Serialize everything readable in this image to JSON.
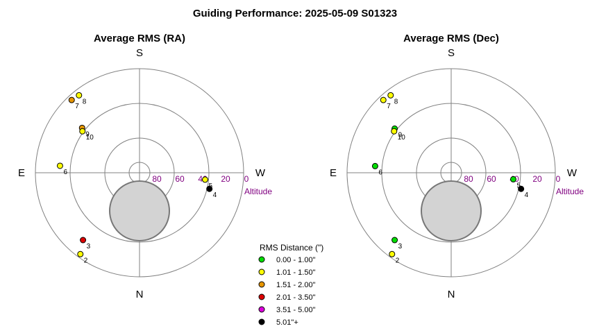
{
  "title": "Guiding Performance: 2025-05-09 S01323",
  "compass": {
    "north": "N",
    "south": "S",
    "east": "E",
    "west": "W"
  },
  "altitude_label": "Altitude",
  "altitude_ticks": [
    "80",
    "60",
    "40",
    "20",
    "0"
  ],
  "moon_color": "#d3d3d3",
  "legend": {
    "title": "RMS Distance (\")",
    "items": [
      {
        "label": "0.00 - 1.00\"",
        "color": "#00dd00"
      },
      {
        "label": "1.01 - 1.50\"",
        "color": "#ffff00"
      },
      {
        "label": "1.51 - 2.00\"",
        "color": "#e69500"
      },
      {
        "label": "2.01 - 3.50\"",
        "color": "#dd0000"
      },
      {
        "label": "3.51 - 5.00\"",
        "color": "#dd00dd"
      },
      {
        "label": "5.01\"+",
        "color": "#000000"
      }
    ]
  },
  "chart_data": [
    {
      "type": "scatter",
      "projection": "polar-altaz",
      "title": "Average RMS (RA)",
      "axis": "altitude",
      "altitude_range": [
        0,
        90
      ],
      "points": [
        {
          "label": "2",
          "azimuth": 36,
          "altitude": 3,
          "color": "#ffff00"
        },
        {
          "label": "3",
          "azimuth": 40,
          "altitude": 14,
          "color": "#dd0000"
        },
        {
          "label": "4",
          "azimuth": 283,
          "altitude": 28,
          "color": "#000000"
        },
        {
          "label": "5",
          "azimuth": 276,
          "altitude": 33,
          "color": "#ffff00"
        },
        {
          "label": "6",
          "azimuth": 95,
          "altitude": 21,
          "color": "#ffff00"
        },
        {
          "label": "7",
          "azimuth": 137,
          "altitude": 4,
          "color": "#e69500"
        },
        {
          "label": "8",
          "azimuth": 142,
          "altitude": 5,
          "color": "#ffff00"
        },
        {
          "label": "9",
          "azimuth": 128,
          "altitude": 27,
          "color": "#e69500"
        },
        {
          "label": "10",
          "azimuth": 126,
          "altitude": 29,
          "color": "#ffff00"
        }
      ]
    },
    {
      "type": "scatter",
      "projection": "polar-altaz",
      "title": "Average RMS (Dec)",
      "axis": "altitude",
      "altitude_range": [
        0,
        90
      ],
      "points": [
        {
          "label": "2",
          "azimuth": 36,
          "altitude": 3,
          "color": "#ffff00"
        },
        {
          "label": "3",
          "azimuth": 40,
          "altitude": 14,
          "color": "#00dd00"
        },
        {
          "label": "4",
          "azimuth": 283,
          "altitude": 28,
          "color": "#000000"
        },
        {
          "label": "5",
          "azimuth": 276,
          "altitude": 36,
          "color": "#00dd00"
        },
        {
          "label": "6",
          "azimuth": 95,
          "altitude": 24,
          "color": "#00dd00"
        },
        {
          "label": "7",
          "azimuth": 137,
          "altitude": 4,
          "color": "#ffff00"
        },
        {
          "label": "8",
          "azimuth": 142,
          "altitude": 5,
          "color": "#ffff00"
        },
        {
          "label": "9",
          "azimuth": 128,
          "altitude": 28,
          "color": "#00dd00"
        },
        {
          "label": "10",
          "azimuth": 126,
          "altitude": 29,
          "color": "#ffff00"
        }
      ]
    }
  ]
}
